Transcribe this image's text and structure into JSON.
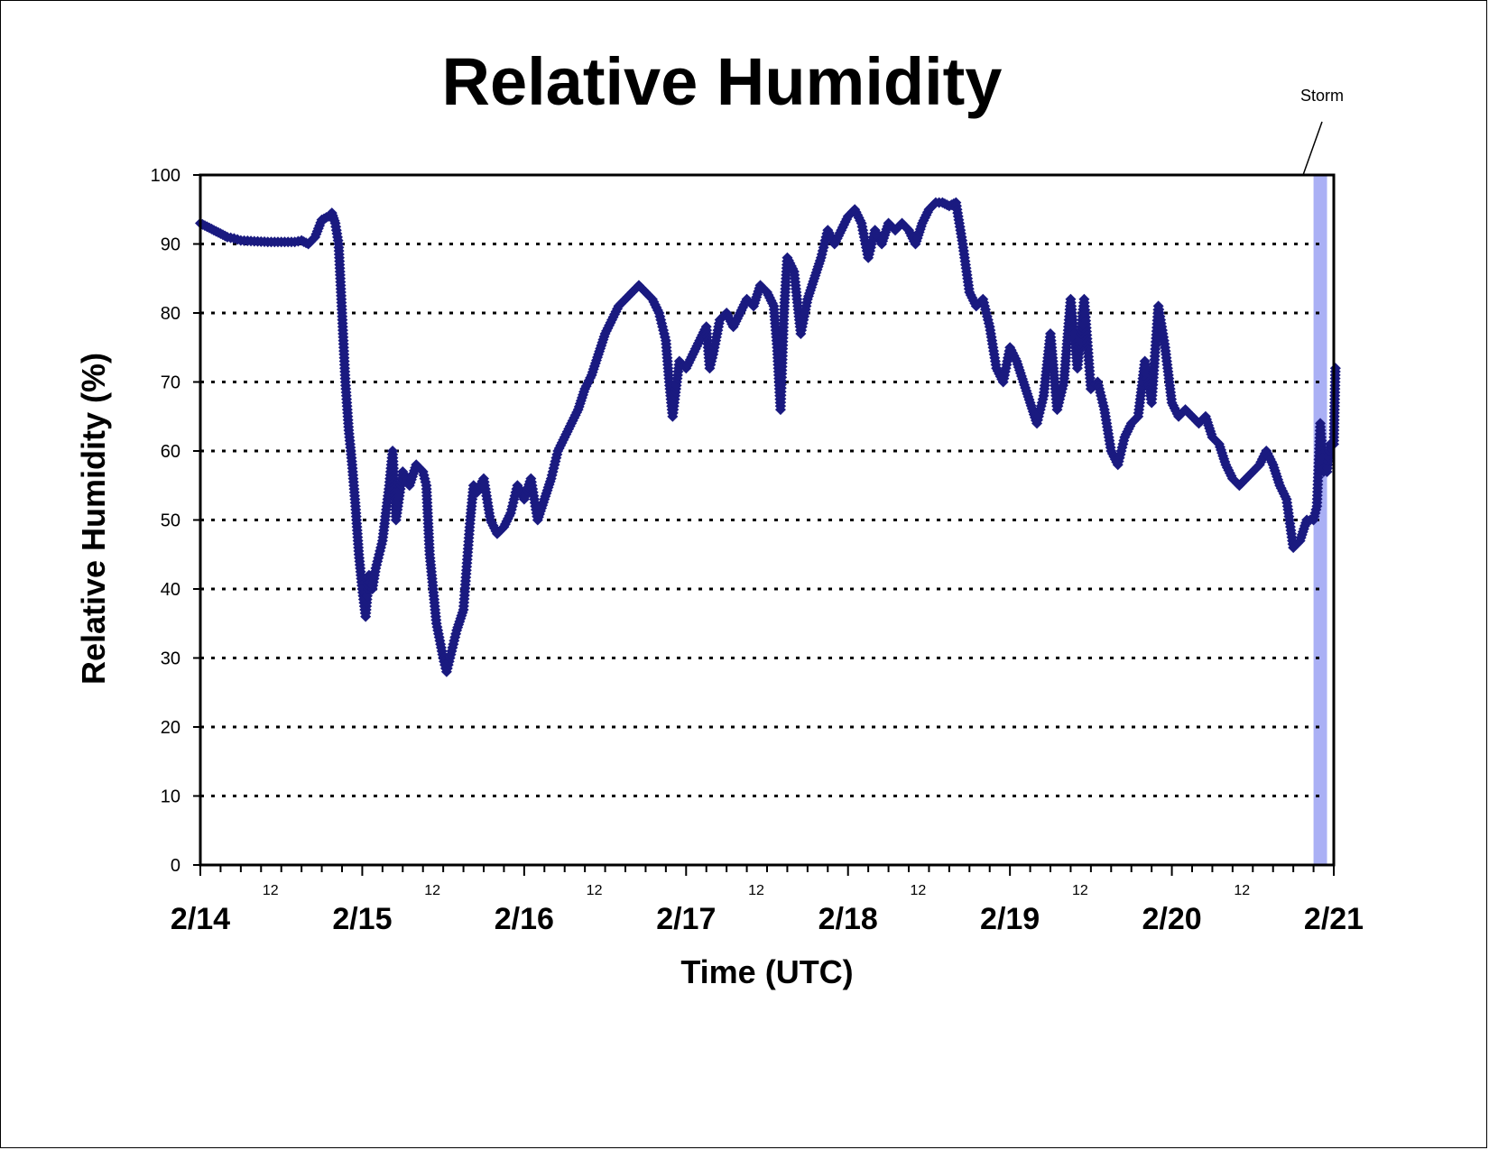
{
  "chart_data": {
    "type": "scatter",
    "title": "Relative Humidity",
    "xlabel": "Time (UTC)",
    "ylabel": "Relative Humidity (%)",
    "ylim": [
      0,
      100
    ],
    "yticks": [
      "0",
      "10",
      "20",
      "30",
      "40",
      "50",
      "60",
      "70",
      "80",
      "90",
      "100"
    ],
    "xlim": [
      "2/14 00:00",
      "2/21 00:00"
    ],
    "day_labels": [
      "2/14",
      "2/15",
      "2/16",
      "2/17",
      "2/18",
      "2/19",
      "2/20",
      "2/21"
    ],
    "hour_labels": [
      "12",
      "12",
      "12",
      "12",
      "12",
      "12",
      "12"
    ],
    "grid": "horizontal dotted",
    "marker_color": "#1a1a80",
    "annotation": {
      "text": "Storm",
      "band": [
        "2/20 21:00",
        "2/20 23:00"
      ],
      "band_color": "#aab0f5"
    },
    "series": [
      {
        "points": [
          [
            "2/14 00:00",
            93
          ],
          [
            "2/14 01:00",
            92.5
          ],
          [
            "2/14 02:00",
            92
          ],
          [
            "2/14 03:00",
            91.5
          ],
          [
            "2/14 04:00",
            91
          ],
          [
            "2/14 05:00",
            90.8
          ],
          [
            "2/14 06:00",
            90.5
          ],
          [
            "2/14 08:00",
            90.4
          ],
          [
            "2/14 10:00",
            90.3
          ],
          [
            "2/14 12:00",
            90.3
          ],
          [
            "2/14 14:00",
            90.3
          ],
          [
            "2/14 15:00",
            90.5
          ],
          [
            "2/14 16:00",
            90
          ],
          [
            "2/14 17:00",
            91
          ],
          [
            "2/14 18:00",
            93.5
          ],
          [
            "2/14 19:00",
            94
          ],
          [
            "2/14 19:30",
            94.5
          ],
          [
            "2/14 20:00",
            93
          ],
          [
            "2/14 20:30",
            90
          ],
          [
            "2/14 21:00",
            80
          ],
          [
            "2/14 21:30",
            70
          ],
          [
            "2/14 22:00",
            63
          ],
          [
            "2/14 22:30",
            58
          ],
          [
            "2/14 23:00",
            52
          ],
          [
            "2/14 23:30",
            45
          ],
          [
            "2/15 00:00",
            40
          ],
          [
            "2/15 00:30",
            36
          ],
          [
            "2/15 01:00",
            42
          ],
          [
            "2/15 01:30",
            40
          ],
          [
            "2/15 02:00",
            43
          ],
          [
            "2/15 03:00",
            47
          ],
          [
            "2/15 04:00",
            55
          ],
          [
            "2/15 04:30",
            60
          ],
          [
            "2/15 05:00",
            50
          ],
          [
            "2/15 06:00",
            57
          ],
          [
            "2/15 07:00",
            55
          ],
          [
            "2/15 08:00",
            58
          ],
          [
            "2/15 09:00",
            57
          ],
          [
            "2/15 09:30",
            55
          ],
          [
            "2/15 10:00",
            45
          ],
          [
            "2/15 11:00",
            35
          ],
          [
            "2/15 12:00",
            30
          ],
          [
            "2/15 12:30",
            28
          ],
          [
            "2/15 13:00",
            30
          ],
          [
            "2/15 14:00",
            34
          ],
          [
            "2/15 15:00",
            37
          ],
          [
            "2/15 16:00",
            50
          ],
          [
            "2/15 16:30",
            55
          ],
          [
            "2/15 17:00",
            54
          ],
          [
            "2/15 18:00",
            56
          ],
          [
            "2/15 19:00",
            50
          ],
          [
            "2/15 20:00",
            48
          ],
          [
            "2/15 21:00",
            49
          ],
          [
            "2/15 22:00",
            51
          ],
          [
            "2/15 23:00",
            55
          ],
          [
            "2/16 00:00",
            53
          ],
          [
            "2/16 01:00",
            56
          ],
          [
            "2/16 02:00",
            50
          ],
          [
            "2/16 03:00",
            53
          ],
          [
            "2/16 04:00",
            56
          ],
          [
            "2/16 05:00",
            60
          ],
          [
            "2/16 06:00",
            62
          ],
          [
            "2/16 07:00",
            64
          ],
          [
            "2/16 08:00",
            66
          ],
          [
            "2/16 09:00",
            69
          ],
          [
            "2/16 10:00",
            71
          ],
          [
            "2/16 11:00",
            74
          ],
          [
            "2/16 12:00",
            77
          ],
          [
            "2/16 13:00",
            79
          ],
          [
            "2/16 14:00",
            81
          ],
          [
            "2/16 15:00",
            82
          ],
          [
            "2/16 16:00",
            83
          ],
          [
            "2/16 17:00",
            84
          ],
          [
            "2/16 18:00",
            83
          ],
          [
            "2/16 19:00",
            82
          ],
          [
            "2/16 20:00",
            80
          ],
          [
            "2/16 21:00",
            76
          ],
          [
            "2/16 21:30",
            70
          ],
          [
            "2/16 22:00",
            65
          ],
          [
            "2/16 23:00",
            73
          ],
          [
            "2/17 00:00",
            72
          ],
          [
            "2/17 01:00",
            74
          ],
          [
            "2/17 02:00",
            76
          ],
          [
            "2/17 03:00",
            78
          ],
          [
            "2/17 03:30",
            72
          ],
          [
            "2/17 04:00",
            74
          ],
          [
            "2/17 05:00",
            79
          ],
          [
            "2/17 06:00",
            80
          ],
          [
            "2/17 07:00",
            78
          ],
          [
            "2/17 08:00",
            80
          ],
          [
            "2/17 09:00",
            82
          ],
          [
            "2/17 10:00",
            81
          ],
          [
            "2/17 11:00",
            84
          ],
          [
            "2/17 12:00",
            83
          ],
          [
            "2/17 13:00",
            81
          ],
          [
            "2/17 13:30",
            75
          ],
          [
            "2/17 14:00",
            66
          ],
          [
            "2/17 14:30",
            80
          ],
          [
            "2/17 15:00",
            88
          ],
          [
            "2/17 16:00",
            86
          ],
          [
            "2/17 17:00",
            77
          ],
          [
            "2/17 18:00",
            82
          ],
          [
            "2/17 19:00",
            85
          ],
          [
            "2/17 20:00",
            88
          ],
          [
            "2/17 21:00",
            92
          ],
          [
            "2/17 22:00",
            90
          ],
          [
            "2/17 23:00",
            92
          ],
          [
            "2/18 00:00",
            94
          ],
          [
            "2/18 01:00",
            95
          ],
          [
            "2/18 02:00",
            93
          ],
          [
            "2/18 03:00",
            88
          ],
          [
            "2/18 04:00",
            92
          ],
          [
            "2/18 05:00",
            90
          ],
          [
            "2/18 06:00",
            93
          ],
          [
            "2/18 07:00",
            92
          ],
          [
            "2/18 08:00",
            93
          ],
          [
            "2/18 09:00",
            92
          ],
          [
            "2/18 10:00",
            90
          ],
          [
            "2/18 11:00",
            93
          ],
          [
            "2/18 12:00",
            95
          ],
          [
            "2/18 13:00",
            96
          ],
          [
            "2/18 14:00",
            96
          ],
          [
            "2/18 15:00",
            95.5
          ],
          [
            "2/18 16:00",
            96
          ],
          [
            "2/18 17:00",
            90
          ],
          [
            "2/18 18:00",
            83
          ],
          [
            "2/18 19:00",
            81
          ],
          [
            "2/18 20:00",
            82
          ],
          [
            "2/18 21:00",
            78
          ],
          [
            "2/18 22:00",
            72
          ],
          [
            "2/18 23:00",
            70
          ],
          [
            "2/19 00:00",
            75
          ],
          [
            "2/19 01:00",
            73
          ],
          [
            "2/19 02:00",
            70
          ],
          [
            "2/19 03:00",
            67
          ],
          [
            "2/19 04:00",
            64
          ],
          [
            "2/19 05:00",
            68
          ],
          [
            "2/19 06:00",
            77
          ],
          [
            "2/19 07:00",
            66
          ],
          [
            "2/19 08:00",
            70
          ],
          [
            "2/19 09:00",
            82
          ],
          [
            "2/19 10:00",
            72
          ],
          [
            "2/19 11:00",
            82
          ],
          [
            "2/19 12:00",
            69
          ],
          [
            "2/19 13:00",
            70
          ],
          [
            "2/19 14:00",
            66
          ],
          [
            "2/19 15:00",
            60
          ],
          [
            "2/19 16:00",
            58
          ],
          [
            "2/19 17:00",
            62
          ],
          [
            "2/19 18:00",
            64
          ],
          [
            "2/19 19:00",
            65
          ],
          [
            "2/19 20:00",
            73
          ],
          [
            "2/19 21:00",
            67
          ],
          [
            "2/19 22:00",
            81
          ],
          [
            "2/19 23:00",
            75
          ],
          [
            "2/20 00:00",
            67
          ],
          [
            "2/20 01:00",
            65
          ],
          [
            "2/20 02:00",
            66
          ],
          [
            "2/20 03:00",
            65
          ],
          [
            "2/20 04:00",
            64
          ],
          [
            "2/20 05:00",
            65
          ],
          [
            "2/20 06:00",
            62
          ],
          [
            "2/20 07:00",
            61
          ],
          [
            "2/20 08:00",
            58
          ],
          [
            "2/20 09:00",
            56
          ],
          [
            "2/20 10:00",
            55
          ],
          [
            "2/20 11:00",
            56
          ],
          [
            "2/20 12:00",
            57
          ],
          [
            "2/20 13:00",
            58
          ],
          [
            "2/20 14:00",
            60
          ],
          [
            "2/20 15:00",
            58
          ],
          [
            "2/20 16:00",
            55
          ],
          [
            "2/20 17:00",
            53
          ],
          [
            "2/20 18:00",
            46
          ],
          [
            "2/20 19:00",
            47
          ],
          [
            "2/20 20:00",
            50
          ],
          [
            "2/20 21:00",
            50
          ],
          [
            "2/20 21:30",
            52
          ],
          [
            "2/20 22:00",
            64
          ],
          [
            "2/20 22:30",
            57
          ],
          [
            "2/20 23:00",
            57
          ],
          [
            "2/20 23:30",
            61
          ],
          [
            "2/21 00:00",
            61
          ],
          [
            "2/21 00:15",
            72
          ]
        ]
      }
    ]
  }
}
